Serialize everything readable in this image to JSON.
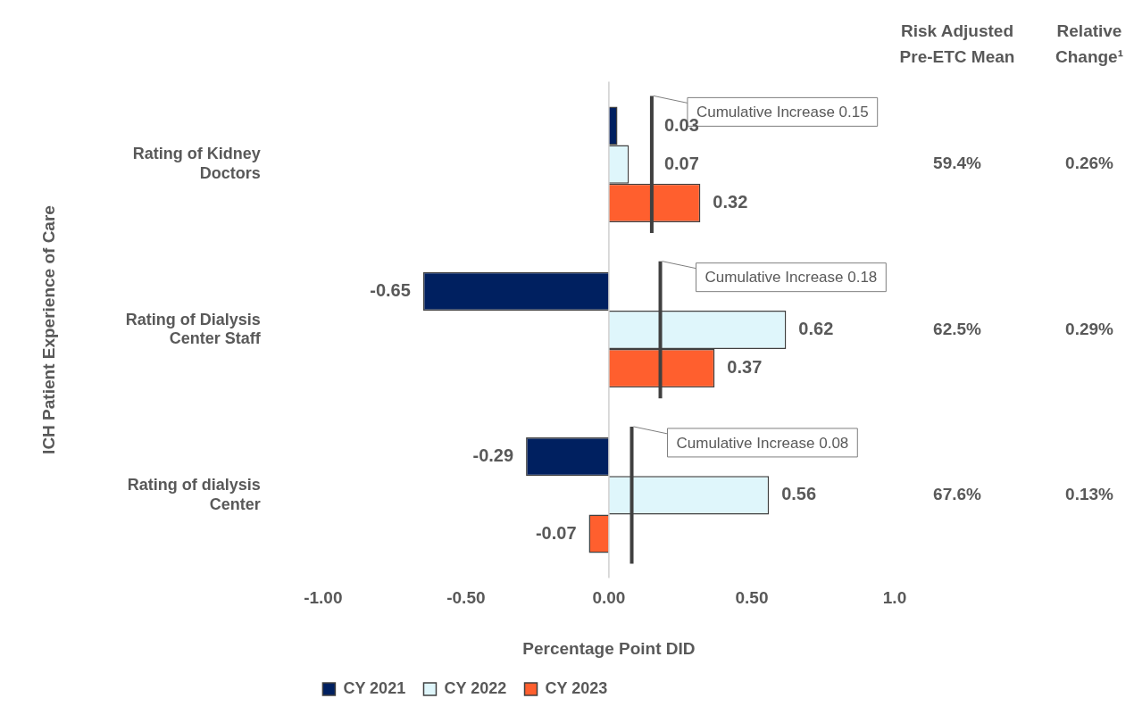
{
  "chart_data": {
    "type": "bar",
    "orientation": "horizontal",
    "categories": [
      "Rating of Kidney Doctors",
      "Rating of Dialysis Center Staff",
      "Rating of dialysis Center"
    ],
    "series": [
      {
        "name": "CY 2021",
        "color": "#002060",
        "values": [
          0.03,
          -0.65,
          -0.29
        ]
      },
      {
        "name": "CY 2022",
        "color": "#dff6fb",
        "values": [
          0.07,
          0.62,
          0.56
        ]
      },
      {
        "name": "CY 2023",
        "color": "#ff5f2e",
        "values": [
          0.32,
          0.37,
          -0.07
        ]
      }
    ],
    "xlim": [
      -1,
      1
    ],
    "xticks": [
      {
        "value": -1,
        "label": "-1.00"
      },
      {
        "value": -0.5,
        "label": "-0.50"
      },
      {
        "value": 0,
        "label": "0.00"
      },
      {
        "value": 0.5,
        "label": "0.50"
      },
      {
        "value": 1,
        "label": "1.0"
      }
    ],
    "xlabel": "Percentage Point DID",
    "ylabel": "ICH Patient Experience of Care",
    "data_labels": true,
    "legend": "bottom",
    "ref_lines": [
      {
        "axis": "x",
        "value": 0,
        "color": "#d0d0d0"
      },
      {
        "axis": "x",
        "value": 0.15,
        "label": "Cumulative Increase 0.15",
        "color": "#404040"
      },
      {
        "axis": "x",
        "value": 0.18,
        "label": "Cumulative Increase 0.18",
        "color": "#404040"
      },
      {
        "axis": "x",
        "value": 0.08,
        "label": "Cumulative Increase 0.08",
        "color": "#404040"
      }
    ],
    "annotations": [
      "Risk Adjusted Pre-ETC Mean",
      "Relative Change¹",
      "59.4%",
      "0.26%",
      "62.5%",
      "0.29%",
      "67.6%",
      "0.13%"
    ]
  }
}
